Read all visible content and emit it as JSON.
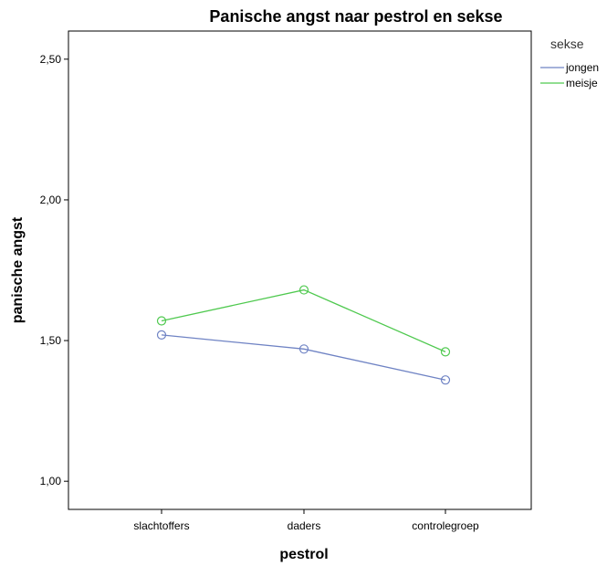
{
  "chart_data": {
    "type": "line",
    "title": "Panische angst naar pestrol en sekse",
    "xlabel": "pestrol",
    "ylabel": "panische angst",
    "categories": [
      "slachtoffers",
      "daders",
      "controlegroep"
    ],
    "ylim": [
      0.9,
      2.6
    ],
    "yticks": [
      1.0,
      1.5,
      2.0,
      2.5
    ],
    "ytick_labels": [
      "1,00",
      "1,50",
      "2,00",
      "2,50"
    ],
    "grid": false,
    "legend": {
      "title": "sekse",
      "placement": "right"
    },
    "series": [
      {
        "name": "jongen",
        "values": [
          1.52,
          1.47,
          1.36
        ],
        "color": "#6f83c4",
        "marker": "circle"
      },
      {
        "name": "meisje",
        "values": [
          1.57,
          1.68,
          1.46
        ],
        "color": "#4fc94f",
        "marker": "circle"
      }
    ]
  }
}
